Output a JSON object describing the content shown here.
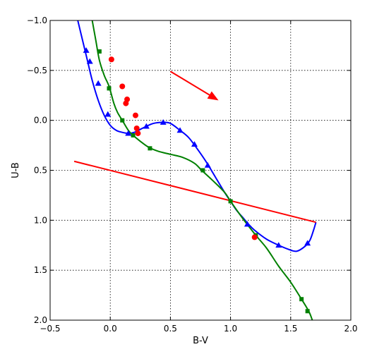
{
  "chart_data": {
    "type": "line",
    "title": "",
    "xlabel": "B-V",
    "ylabel": "U-B",
    "xlim": [
      -0.5,
      2.0
    ],
    "ylim": [
      2.0,
      -1.0
    ],
    "y_inverted": true,
    "grid": true,
    "x_ticks": [
      -0.5,
      0.0,
      0.5,
      1.0,
      1.5,
      2.0
    ],
    "x_tick_labels": [
      "−0.5",
      "0.0",
      "0.5",
      "1.0",
      "1.5",
      "2.0"
    ],
    "y_ticks": [
      -1.0,
      -0.5,
      0.0,
      0.5,
      1.0,
      1.5,
      2.0
    ],
    "y_tick_labels": [
      "−1.0",
      "−0.5",
      "0.0",
      "0.5",
      "1.0",
      "1.5",
      "2.0"
    ],
    "series": [
      {
        "color": "#0000ff",
        "marker": "triangle",
        "curve": [
          [
            -0.27,
            -1.0
          ],
          [
            -0.23,
            -0.8
          ],
          [
            -0.19,
            -0.6
          ],
          [
            -0.15,
            -0.4
          ],
          [
            -0.1,
            -0.2
          ],
          [
            -0.05,
            -0.05
          ],
          [
            0.0,
            0.05
          ],
          [
            0.05,
            0.1
          ],
          [
            0.1,
            0.12
          ],
          [
            0.15,
            0.13
          ],
          [
            0.2,
            0.12
          ],
          [
            0.25,
            0.09
          ],
          [
            0.3,
            0.06
          ],
          [
            0.36,
            0.03
          ],
          [
            0.44,
            0.02
          ],
          [
            0.5,
            0.03
          ],
          [
            0.58,
            0.1
          ],
          [
            0.65,
            0.17
          ],
          [
            0.72,
            0.28
          ],
          [
            0.8,
            0.42
          ],
          [
            0.88,
            0.58
          ],
          [
            0.95,
            0.72
          ],
          [
            1.0,
            0.81
          ],
          [
            1.05,
            0.9
          ],
          [
            1.1,
            0.97
          ],
          [
            1.15,
            1.04
          ],
          [
            1.2,
            1.1
          ],
          [
            1.3,
            1.19
          ],
          [
            1.4,
            1.25
          ],
          [
            1.48,
            1.29
          ],
          [
            1.55,
            1.31
          ],
          [
            1.62,
            1.26
          ],
          [
            1.66,
            1.2
          ],
          [
            1.69,
            1.1
          ],
          [
            1.71,
            1.02
          ]
        ],
        "points": [
          [
            -0.2,
            -0.7
          ],
          [
            -0.17,
            -0.59
          ],
          [
            -0.1,
            -0.37
          ],
          [
            -0.02,
            -0.06
          ],
          [
            0.15,
            0.13
          ],
          [
            0.3,
            0.06
          ],
          [
            0.44,
            0.02
          ],
          [
            0.58,
            0.1
          ],
          [
            0.7,
            0.24
          ],
          [
            0.81,
            0.45
          ],
          [
            1.14,
            1.04
          ],
          [
            1.4,
            1.25
          ],
          [
            1.64,
            1.23
          ]
        ]
      },
      {
        "color": "#008000",
        "marker": "square",
        "curve": [
          [
            -0.15,
            -1.0
          ],
          [
            -0.12,
            -0.8
          ],
          [
            -0.09,
            -0.6
          ],
          [
            -0.05,
            -0.45
          ],
          [
            -0.01,
            -0.34
          ],
          [
            0.03,
            -0.17
          ],
          [
            0.06,
            -0.08
          ],
          [
            0.1,
            0.0
          ],
          [
            0.15,
            0.1
          ],
          [
            0.19,
            0.15
          ],
          [
            0.25,
            0.21
          ],
          [
            0.32,
            0.27
          ],
          [
            0.4,
            0.31
          ],
          [
            0.5,
            0.34
          ],
          [
            0.6,
            0.37
          ],
          [
            0.7,
            0.43
          ],
          [
            0.76,
            0.5
          ],
          [
            0.85,
            0.6
          ],
          [
            0.95,
            0.72
          ],
          [
            1.0,
            0.81
          ],
          [
            1.1,
            0.98
          ],
          [
            1.21,
            1.15
          ],
          [
            1.3,
            1.28
          ],
          [
            1.4,
            1.46
          ],
          [
            1.5,
            1.62
          ],
          [
            1.59,
            1.79
          ],
          [
            1.65,
            1.91
          ],
          [
            1.68,
            2.0
          ]
        ],
        "points": [
          [
            -0.09,
            -0.69
          ],
          [
            -0.01,
            -0.32
          ],
          [
            0.1,
            0.0
          ],
          [
            0.19,
            0.15
          ],
          [
            0.33,
            0.28
          ],
          [
            0.77,
            0.5
          ],
          [
            1.0,
            0.81
          ],
          [
            1.21,
            1.15
          ],
          [
            1.59,
            1.79
          ],
          [
            1.64,
            1.91
          ]
        ]
      },
      {
        "color": "#ff0000",
        "marker": "circle",
        "curve": [],
        "points": [
          [
            0.01,
            -0.61
          ],
          [
            0.1,
            -0.34
          ],
          [
            0.14,
            -0.21
          ],
          [
            0.13,
            -0.17
          ],
          [
            0.21,
            -0.05
          ],
          [
            0.22,
            0.08
          ],
          [
            0.23,
            0.13
          ],
          [
            1.2,
            1.17
          ]
        ]
      }
    ],
    "annotations": [
      {
        "type": "line",
        "color": "#ff0000",
        "from": [
          -0.3,
          0.41
        ],
        "to": [
          1.71,
          1.02
        ]
      },
      {
        "type": "arrow",
        "color": "#ff0000",
        "from": [
          0.5,
          -0.49
        ],
        "to": [
          0.9,
          -0.2
        ]
      }
    ]
  }
}
